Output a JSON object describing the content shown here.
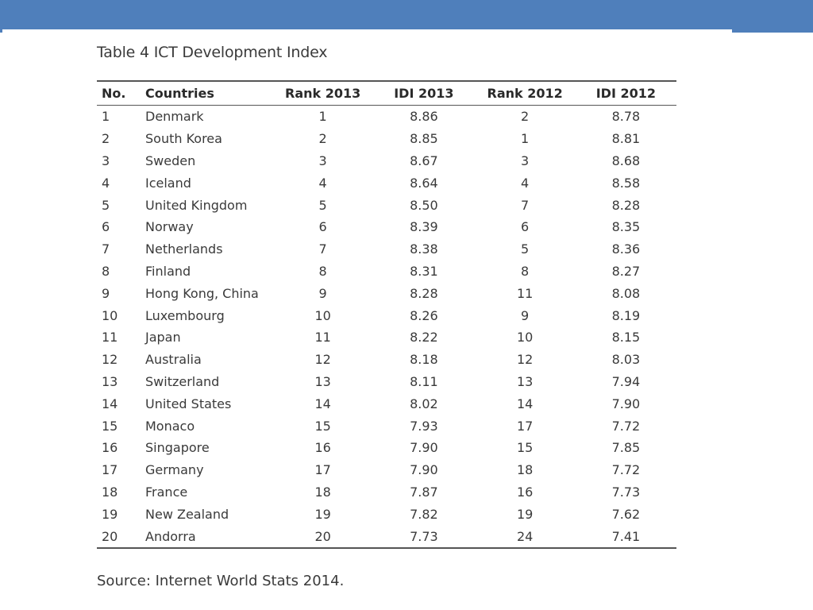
{
  "caption": "Table 4 ICT Development Index",
  "columns": [
    "No.",
    "Countries",
    "Rank 2013",
    "IDI 2013",
    "Rank 2012",
    "IDI 2012"
  ],
  "rows": [
    [
      "1",
      "Denmark",
      "1",
      "8.86",
      "2",
      "8.78"
    ],
    [
      "2",
      "South Korea",
      "2",
      "8.85",
      "1",
      "8.81"
    ],
    [
      "3",
      "Sweden",
      "3",
      "8.67",
      "3",
      "8.68"
    ],
    [
      "4",
      "Iceland",
      "4",
      "8.64",
      "4",
      "8.58"
    ],
    [
      "5",
      "United Kingdom",
      "5",
      "8.50",
      "7",
      "8.28"
    ],
    [
      "6",
      "Norway",
      "6",
      "8.39",
      "6",
      "8.35"
    ],
    [
      "7",
      "Netherlands",
      "7",
      "8.38",
      "5",
      "8.36"
    ],
    [
      "8",
      "Finland",
      "8",
      "8.31",
      "8",
      "8.27"
    ],
    [
      "9",
      "Hong Kong, China",
      "9",
      "8.28",
      "11",
      "8.08"
    ],
    [
      "10",
      "Luxembourg",
      "10",
      "8.26",
      "9",
      "8.19"
    ],
    [
      "11",
      "Japan",
      "11",
      "8.22",
      "10",
      "8.15"
    ],
    [
      "12",
      "Australia",
      "12",
      "8.18",
      "12",
      "8.03"
    ],
    [
      "13",
      "Switzerland",
      "13",
      "8.11",
      "13",
      "7.94"
    ],
    [
      "14",
      "United States",
      "14",
      "8.02",
      "14",
      "7.90"
    ],
    [
      "15",
      "Monaco",
      "15",
      "7.93",
      "17",
      "7.72"
    ],
    [
      "16",
      "Singapore",
      "16",
      "7.90",
      "15",
      "7.85"
    ],
    [
      "17",
      "Germany",
      "17",
      "7.90",
      "18",
      "7.72"
    ],
    [
      "18",
      "France",
      "18",
      "7.87",
      "16",
      "7.73"
    ],
    [
      "19",
      "New Zealand",
      "19",
      "7.82",
      "19",
      "7.62"
    ],
    [
      "20",
      "Andorra",
      "20",
      "7.73",
      "24",
      "7.41"
    ]
  ],
  "source": "Source: Internet World Stats 2014.",
  "colors": {
    "banner": "#4f7fbb",
    "text": "#3a3a3a",
    "rule": "#555555"
  }
}
